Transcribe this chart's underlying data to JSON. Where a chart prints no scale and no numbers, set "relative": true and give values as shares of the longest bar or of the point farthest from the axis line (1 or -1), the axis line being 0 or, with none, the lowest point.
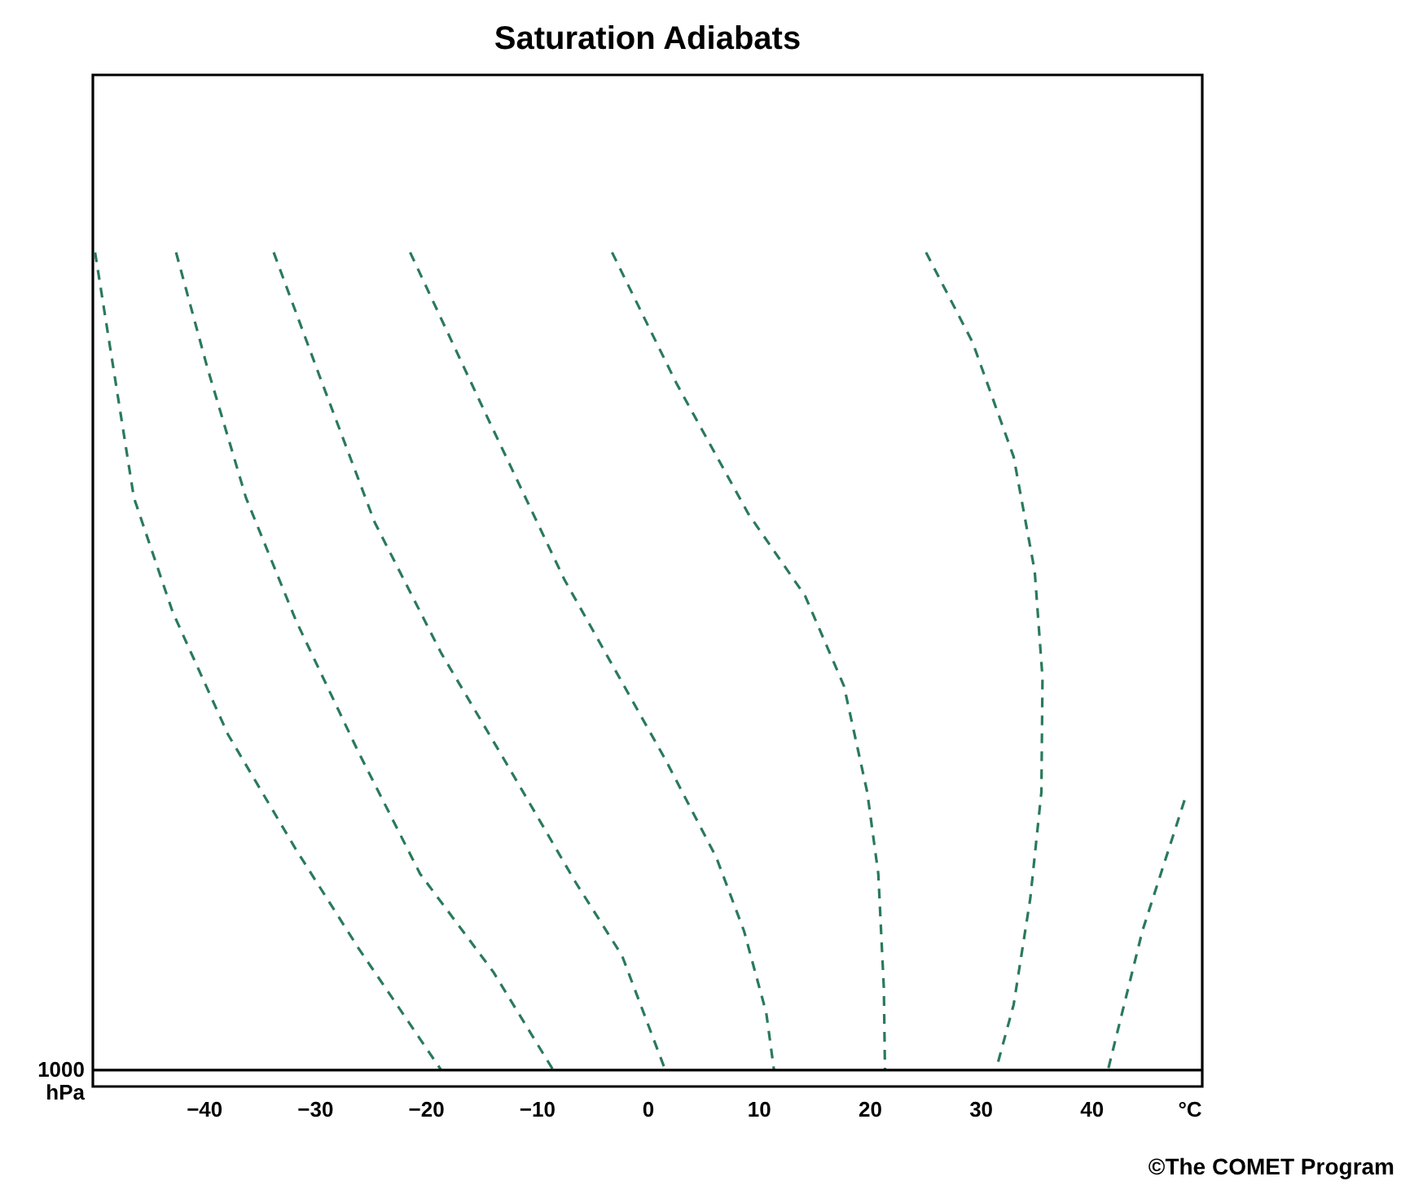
{
  "chart_data": {
    "type": "line",
    "title": "Saturation Adiabats",
    "xlabel": "°C",
    "ylabel": "hPa",
    "relative": true,
    "xlim": [
      -50,
      50
    ],
    "xticks": [
      -40,
      -30,
      -20,
      -10,
      0,
      10,
      20,
      30,
      40
    ],
    "grid": false,
    "legend": false,
    "line_style": "dashed",
    "marker": "none",
    "ref_lines": [
      {
        "axis": "y",
        "value": 0,
        "color": "#000000"
      }
    ],
    "annotations": [
      "1000",
      "©The COMET Program"
    ],
    "series": [
      {
        "color": "#2a7a5a",
        "x": [
          -49.8,
          -46.3,
          -42.8,
          -37.8,
          -31.7,
          -26.1,
          -18.6
        ],
        "values": [
          1.0,
          0.7,
          0.56,
          0.41,
          0.27,
          0.15,
          0
        ]
      },
      {
        "color": "#2a7a5a",
        "x": [
          -42.5,
          -39.7,
          -36.2,
          -31.7,
          -26.1,
          -20.5,
          -13.9,
          -8.5
        ],
        "values": [
          1.0,
          0.86,
          0.7,
          0.55,
          0.39,
          0.24,
          0.12,
          0
        ]
      },
      {
        "color": "#2a7a5a",
        "x": [
          -33.7,
          -29.6,
          -24.6,
          -18.6,
          -12.5,
          -6.5,
          -2.3,
          1.6
        ],
        "values": [
          1.0,
          0.85,
          0.67,
          0.51,
          0.37,
          0.23,
          0.14,
          0
        ]
      },
      {
        "color": "#2a7a5a",
        "x": [
          -21.4,
          -14.5,
          -7.5,
          1.6,
          6.2,
          8.7,
          10.7,
          11.4
        ],
        "values": [
          1.0,
          0.8,
          0.6,
          0.38,
          0.26,
          0.17,
          0.07,
          0
        ]
      },
      {
        "color": "#2a7a5a",
        "x": [
          -3.2,
          2.6,
          9.1,
          14.2,
          17.7,
          19.8,
          20.8,
          21.3,
          21.4
        ],
        "values": [
          1.0,
          0.84,
          0.68,
          0.58,
          0.47,
          0.34,
          0.24,
          0.1,
          0
        ]
      },
      {
        "color": "#2a7a5a",
        "x": [
          25.1,
          29.3,
          33.0,
          34.9,
          35.6,
          35.5,
          34.5,
          33.0,
          31.4
        ],
        "values": [
          1.0,
          0.89,
          0.75,
          0.61,
          0.48,
          0.34,
          0.21,
          0.08,
          0
        ]
      },
      {
        "color": "#2a7a5a",
        "x": [
          48.4,
          44.6,
          41.5
        ],
        "values": [
          0.33,
          0.17,
          0
        ]
      }
    ]
  }
}
